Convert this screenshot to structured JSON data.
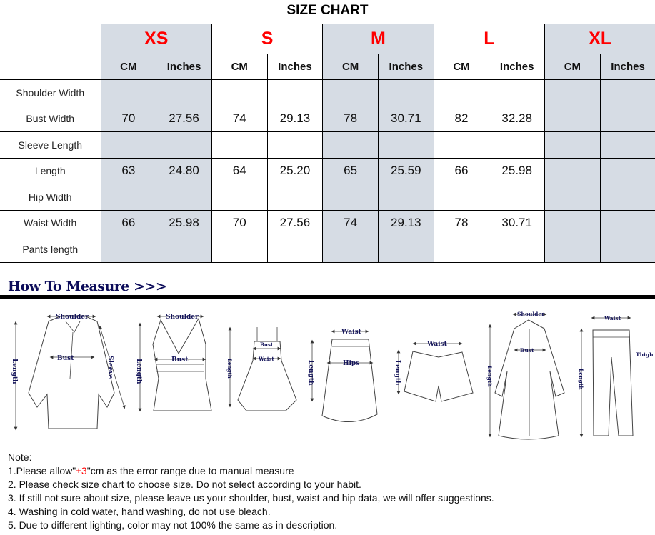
{
  "title": "SIZE CHART",
  "sizes": [
    {
      "label": "XS"
    },
    {
      "label": "S"
    },
    {
      "label": "M"
    },
    {
      "label": "L"
    },
    {
      "label": "XL"
    }
  ],
  "units": {
    "cm": "CM",
    "inches": "Inches"
  },
  "rows": [
    {
      "label": "Shoulder Width",
      "values": [
        "",
        "",
        "",
        "",
        "",
        "",
        "",
        "",
        "",
        ""
      ]
    },
    {
      "label": "Bust Width",
      "values": [
        "70",
        "27.56",
        "74",
        "29.13",
        "78",
        "30.71",
        "82",
        "32.28",
        "",
        ""
      ]
    },
    {
      "label": "Sleeve Length",
      "values": [
        "",
        "",
        "",
        "",
        "",
        "",
        "",
        "",
        "",
        ""
      ]
    },
    {
      "label": "Length",
      "values": [
        "63",
        "24.80",
        "64",
        "25.20",
        "65",
        "25.59",
        "66",
        "25.98",
        "",
        ""
      ]
    },
    {
      "label": "Hip Width",
      "values": [
        "",
        "",
        "",
        "",
        "",
        "",
        "",
        "",
        "",
        ""
      ]
    },
    {
      "label": "Waist Width",
      "values": [
        "66",
        "25.98",
        "70",
        "27.56",
        "74",
        "29.13",
        "78",
        "30.71",
        "",
        ""
      ]
    },
    {
      "label": "Pants length",
      "values": [
        "",
        "",
        "",
        "",
        "",
        "",
        "",
        "",
        "",
        ""
      ]
    }
  ],
  "colors": {
    "shaded": "#d6dce4",
    "size_label": "#ff0000",
    "measure_text": "#14145a"
  },
  "how_to": {
    "title": "How To Measure >>>",
    "labels": {
      "shoulder": "Shoulder",
      "bust": "Bust",
      "sleeve": "Sleeve",
      "length": "Length",
      "waist": "Waist",
      "hips": "Hips",
      "thigh": "Thigh"
    }
  },
  "notes": {
    "heading": "Note:",
    "n1_pre": "1.Please allow\"",
    "n1_red": "±3",
    "n1_post": "\"cm as the error range due to manual measure",
    "n2": "2. Please check size chart to choose size. Do not select according to your habit.",
    "n3": "3. If still not sure about size, please leave us your shoulder, bust, waist and hip data, we will offer suggestions.",
    "n4": "4. Washing in cold water, hand washing, do not use bleach.",
    "n5": "5. Due to different lighting, color may not 100% the same as in description."
  }
}
